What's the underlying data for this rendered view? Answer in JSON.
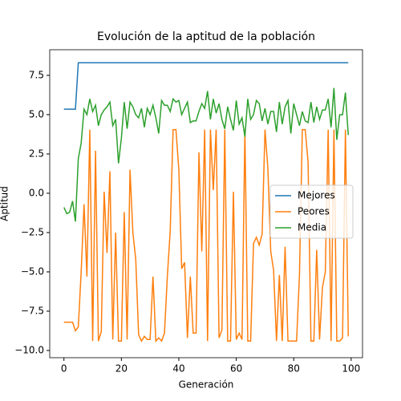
{
  "chart_data": {
    "type": "line",
    "title": "Evolución de la aptitud de la población",
    "xlabel": "Generación",
    "ylabel": "Aptitud",
    "x": [
      0,
      1,
      2,
      3,
      4,
      5,
      6,
      7,
      8,
      9,
      10,
      11,
      12,
      13,
      14,
      15,
      16,
      17,
      18,
      19,
      20,
      21,
      22,
      23,
      24,
      25,
      26,
      27,
      28,
      29,
      30,
      31,
      32,
      33,
      34,
      35,
      36,
      37,
      38,
      39,
      40,
      41,
      42,
      43,
      44,
      45,
      46,
      47,
      48,
      49,
      50,
      51,
      52,
      53,
      54,
      55,
      56,
      57,
      58,
      59,
      60,
      61,
      62,
      63,
      64,
      65,
      66,
      67,
      68,
      69,
      70,
      71,
      72,
      73,
      74,
      75,
      76,
      77,
      78,
      79,
      80,
      81,
      82,
      83,
      84,
      85,
      86,
      87,
      88,
      89,
      90,
      91,
      92,
      93,
      94,
      95,
      96,
      97,
      98,
      99
    ],
    "series": [
      {
        "name": "Mejores",
        "color": "#1f77b4",
        "values": [
          5.35,
          5.35,
          5.35,
          5.35,
          5.35,
          8.3,
          8.3,
          8.3,
          8.3,
          8.3,
          8.3,
          8.3,
          8.3,
          8.3,
          8.3,
          8.3,
          8.3,
          8.3,
          8.3,
          8.3,
          8.3,
          8.3,
          8.3,
          8.3,
          8.3,
          8.3,
          8.3,
          8.3,
          8.3,
          8.3,
          8.3,
          8.3,
          8.3,
          8.3,
          8.3,
          8.3,
          8.3,
          8.3,
          8.3,
          8.3,
          8.3,
          8.3,
          8.3,
          8.3,
          8.3,
          8.3,
          8.3,
          8.3,
          8.3,
          8.3,
          8.3,
          8.3,
          8.3,
          8.3,
          8.3,
          8.3,
          8.3,
          8.3,
          8.3,
          8.3,
          8.3,
          8.3,
          8.3,
          8.3,
          8.3,
          8.3,
          8.3,
          8.3,
          8.3,
          8.3,
          8.3,
          8.3,
          8.3,
          8.3,
          8.3,
          8.3,
          8.3,
          8.3,
          8.3,
          8.3,
          8.3,
          8.3,
          8.3,
          8.3,
          8.3,
          8.3,
          8.3,
          8.3,
          8.3,
          8.3,
          8.3,
          8.3,
          8.3,
          8.3,
          8.3,
          8.3,
          8.3,
          8.3,
          8.3,
          8.3
        ]
      },
      {
        "name": "Peores",
        "color": "#ff7f0e",
        "values": [
          -8.2,
          -8.2,
          -8.2,
          -8.2,
          -8.75,
          -8.5,
          -5,
          -0.7,
          -5.3,
          4.05,
          -9.4,
          2.7,
          -9.4,
          -8.8,
          0.1,
          -3.8,
          1.4,
          -9.3,
          -2.5,
          -9.4,
          -9.4,
          -1.2,
          -9.3,
          1.5,
          -2.5,
          -4.2,
          -9,
          -9.4,
          -9.1,
          -9.3,
          -9.3,
          -5.3,
          -9.4,
          -9.2,
          -9.4,
          -8.9,
          -5.3,
          -2.4,
          4.05,
          4.05,
          1.5,
          -4.8,
          -4.4,
          -9.2,
          -5.3,
          -8.9,
          -8.9,
          2.6,
          -3.7,
          4.05,
          -9.4,
          4.05,
          0.2,
          4.05,
          -9.2,
          -8.7,
          4.05,
          -9.4,
          -9.4,
          0.1,
          -9.3,
          -8.9,
          -9.3,
          4.05,
          -9.4,
          -9.4,
          -3.2,
          -2.8,
          -3.3,
          -2.6,
          4.05,
          1.6,
          -3.7,
          -4.9,
          -9.4,
          -5.2,
          -9.4,
          -3.4,
          -9.4,
          -9.4,
          -9.4,
          -9.4,
          -5.2,
          4.05,
          4.05,
          2.0,
          -9.4,
          -9.4,
          -3.6,
          -9.3,
          -6,
          -5,
          4.05,
          -9.4,
          4.05,
          -9.4,
          -9.4,
          -9.2,
          4.05,
          -9.1
        ]
      },
      {
        "name": "Media",
        "color": "#2ca02c",
        "values": [
          -0.9,
          -1.3,
          -1.2,
          -0.5,
          -1.8,
          2.2,
          3.2,
          5.35,
          5,
          6,
          5.2,
          5.6,
          4.3,
          5,
          5.3,
          5.5,
          5.8,
          4.3,
          4.7,
          1.9,
          3.5,
          5.8,
          4.1,
          5.8,
          5.5,
          5,
          4.8,
          5.4,
          4.2,
          5.4,
          5,
          5.6,
          4.8,
          3.8,
          5.9,
          5.6,
          5.6,
          5.2,
          6,
          5.8,
          5.9,
          5,
          5.4,
          5.8,
          4.5,
          4.6,
          4.6,
          5.2,
          5.7,
          5.4,
          6.5,
          4.7,
          6,
          5.1,
          5.7,
          4.7,
          4.1,
          5.5,
          4.7,
          4,
          5.9,
          4.4,
          4.8,
          3.6,
          6,
          4.7,
          5,
          5.9,
          5.7,
          4.6,
          5.4,
          4.4,
          5.2,
          5.2,
          3.9,
          5.8,
          4.4,
          5.5,
          5.9,
          3.8,
          5.7,
          5,
          4.3,
          5.2,
          4.6,
          4.5,
          5.8,
          4.5,
          5.5,
          4.7,
          5.3,
          5.3,
          6,
          4.2,
          6.7,
          3.4,
          5,
          5,
          6.4,
          3.7
        ]
      }
    ],
    "xlim": [
      -4.95,
      103.95
    ],
    "ylim": [
      -10.46,
      9.13
    ],
    "xticks": [
      0,
      20,
      40,
      60,
      80,
      100
    ],
    "yticks": [
      {
        "value": -10,
        "label": "−10.0"
      },
      {
        "value": -7.5,
        "label": "−7.5"
      },
      {
        "value": -5,
        "label": "−5.0"
      },
      {
        "value": -2.5,
        "label": "−2.5"
      },
      {
        "value": 0,
        "label": "0.0"
      },
      2.5,
      {
        "value": 5,
        "label": "5.0"
      },
      7.5
    ],
    "legend": "center right"
  }
}
